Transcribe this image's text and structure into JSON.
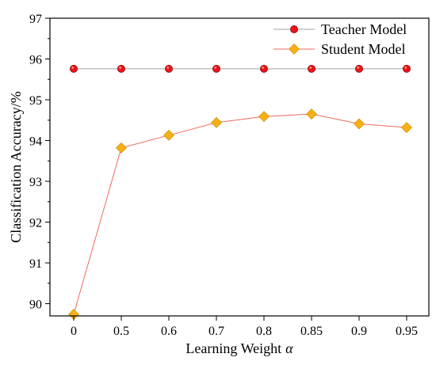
{
  "chart_data": {
    "type": "line",
    "title": "",
    "xlabel": "Learning Weight",
    "xlabel_symbol": "α",
    "ylabel": "Classification Accuracy/%",
    "categories": [
      "0",
      "0.5",
      "0.6",
      "0.7",
      "0.8",
      "0.85",
      "0.9",
      "0.95"
    ],
    "ylim": [
      89.7,
      97
    ],
    "yticks": [
      "90",
      "91",
      "92",
      "93",
      "94",
      "95",
      "96",
      "97"
    ],
    "grid": false,
    "legend_position": "top-right",
    "series": [
      {
        "name": "Teacher Model",
        "values": [
          95.76,
          95.76,
          95.76,
          95.76,
          95.76,
          95.76,
          95.76,
          95.76
        ],
        "marker": "circle",
        "line_color": "#a0a0a0",
        "marker_color": "#e8141a"
      },
      {
        "name": "Student Model",
        "values": [
          89.74,
          93.82,
          94.13,
          94.44,
          94.59,
          94.65,
          94.41,
          94.32
        ],
        "marker": "diamond",
        "line_color": "#f06a5a",
        "marker_color": "#f5b014"
      }
    ]
  }
}
